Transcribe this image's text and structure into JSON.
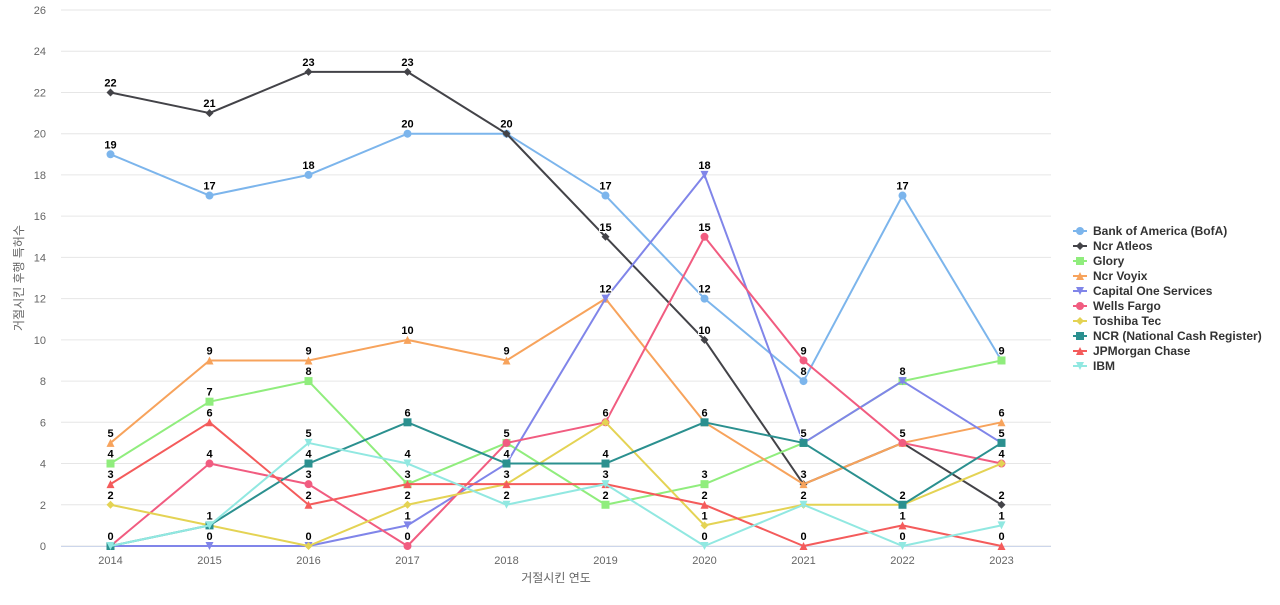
{
  "chart_data": {
    "type": "line",
    "title": "",
    "xlabel": "거절시킨 연도",
    "ylabel": "거절시킨 후행 특허수",
    "ylim": [
      0,
      26
    ],
    "yticks": [
      0,
      2,
      4,
      6,
      8,
      10,
      12,
      14,
      16,
      18,
      20,
      22,
      24,
      26
    ],
    "grid": true,
    "legend_position": "right",
    "categories": [
      "2014",
      "2015",
      "2016",
      "2017",
      "2018",
      "2019",
      "2020",
      "2021",
      "2022",
      "2023"
    ],
    "series": [
      {
        "name": "Bank of America (BofA)",
        "color": "#7cb5ec",
        "marker": "circle",
        "values": [
          19,
          17,
          18,
          20,
          20,
          17,
          12,
          8,
          17,
          9
        ]
      },
      {
        "name": "Ncr Atleos",
        "color": "#434348",
        "marker": "diamond",
        "values": [
          22,
          21,
          23,
          23,
          20,
          15,
          10,
          3,
          5,
          2
        ]
      },
      {
        "name": "Glory",
        "color": "#90ed7d",
        "marker": "square",
        "values": [
          4,
          7,
          8,
          3,
          5,
          2,
          3,
          5,
          8,
          9
        ]
      },
      {
        "name": "Ncr Voyix",
        "color": "#f7a35c",
        "marker": "triangle",
        "values": [
          5,
          9,
          9,
          10,
          9,
          12,
          6,
          3,
          5,
          6
        ]
      },
      {
        "name": "Capital One Services",
        "color": "#8085e9",
        "marker": "triangle-down",
        "values": [
          0,
          0,
          0,
          1,
          4,
          12,
          18,
          5,
          8,
          5
        ]
      },
      {
        "name": "Wells Fargo",
        "color": "#f15c80",
        "marker": "circle",
        "values": [
          0,
          4,
          3,
          0,
          5,
          6,
          15,
          9,
          5,
          4
        ]
      },
      {
        "name": "Toshiba Tec",
        "color": "#e4d354",
        "marker": "diamond",
        "values": [
          2,
          1,
          0,
          2,
          3,
          6,
          1,
          2,
          2,
          4
        ]
      },
      {
        "name": "NCR (National Cash Register)",
        "color": "#2b908f",
        "marker": "square",
        "values": [
          0,
          1,
          4,
          6,
          4,
          4,
          6,
          5,
          2,
          5
        ]
      },
      {
        "name": "JPMorgan Chase",
        "color": "#f45b5b",
        "marker": "triangle",
        "values": [
          3,
          6,
          2,
          3,
          3,
          3,
          2,
          0,
          1,
          0
        ]
      },
      {
        "name": "IBM",
        "color": "#91e8e1",
        "marker": "triangle-down",
        "values": [
          0,
          1,
          5,
          4,
          2,
          3,
          0,
          2,
          0,
          1
        ]
      }
    ]
  }
}
